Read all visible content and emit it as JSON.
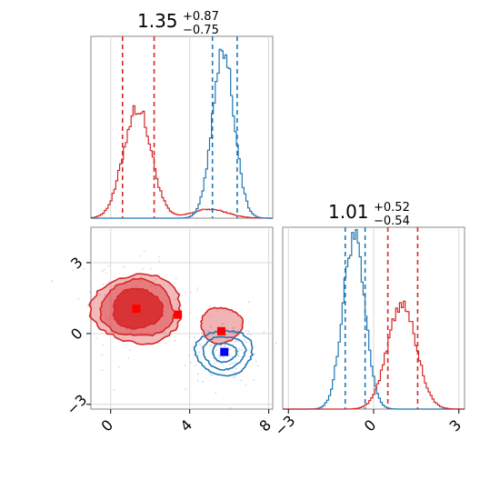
{
  "chart_data": [
    {
      "type": "histogram",
      "panel": "top-left marginal (param 1)",
      "title": {
        "value": "1.35",
        "plus": "+0.87",
        "minus": "−0.75"
      },
      "xlim": [
        -1,
        8.2
      ],
      "series": [
        {
          "color": "#d62728",
          "peak_x": 1.35,
          "sigma": 0.7,
          "peak_height": 0.62,
          "quantile_lines": [
            0.6,
            2.2
          ]
        },
        {
          "color": "#1f77b4",
          "peak_x": 5.7,
          "sigma": 0.55,
          "peak_height": 0.95,
          "quantile_lines": [
            5.15,
            6.4
          ]
        }
      ],
      "red_minor_bump": {
        "x": 5.0,
        "height": 0.05
      },
      "grid": true
    },
    {
      "type": "histogram",
      "panel": "bottom-right marginal (param 2)",
      "title": {
        "value": "1.01",
        "plus": "+0.52",
        "minus": "−0.54"
      },
      "xlim": [
        -3.2,
        3.2
      ],
      "xticks": [
        -3,
        0,
        3
      ],
      "xtick_labels": [
        "−3",
        "0",
        "3"
      ],
      "series": [
        {
          "color": "#1f77b4",
          "peak_x": -0.7,
          "sigma": 0.38,
          "peak_height": 0.97,
          "quantile_lines": [
            -1.0,
            -0.3
          ]
        },
        {
          "color": "#d62728",
          "peak_x": 1.0,
          "sigma": 0.5,
          "peak_height": 0.6,
          "quantile_lines": [
            0.5,
            1.55
          ]
        }
      ],
      "grid": true
    },
    {
      "type": "contour",
      "panel": "bottom-left joint (param 1 vs param 2)",
      "xlim": [
        -1,
        8.2
      ],
      "ylim": [
        -3.2,
        4.5
      ],
      "xticks": [
        0,
        4,
        8
      ],
      "yticks": [
        -3,
        0,
        3
      ],
      "xtick_labels": [
        "0",
        "4",
        "8"
      ],
      "ytick_labels": [
        "−3",
        "0",
        "3"
      ],
      "red_contours": [
        {
          "cx": 1.35,
          "cy": 1.05,
          "rx": 2.3,
          "ry": 1.45
        },
        {
          "cx": 1.35,
          "cy": 1.05,
          "rx": 1.85,
          "ry": 1.2
        },
        {
          "cx": 1.35,
          "cy": 1.05,
          "rx": 1.25,
          "ry": 0.85
        },
        {
          "cx": 5.6,
          "cy": 0.35,
          "rx": 1.05,
          "ry": 0.75
        }
      ],
      "blue_contours": [
        {
          "cx": 5.75,
          "cy": -0.8,
          "rx": 1.45,
          "ry": 0.95
        },
        {
          "cx": 5.75,
          "cy": -0.8,
          "rx": 1.05,
          "ry": 0.7
        },
        {
          "cx": 5.75,
          "cy": -0.8,
          "rx": 0.6,
          "ry": 0.4
        }
      ],
      "markers": [
        {
          "x": 1.3,
          "y": 1.05,
          "color": "#ff0000"
        },
        {
          "x": 3.4,
          "y": 0.8,
          "color": "#ff0000"
        },
        {
          "x": 5.6,
          "y": 0.1,
          "color": "#ff0000"
        },
        {
          "x": 5.75,
          "y": -0.78,
          "color": "#0000ff"
        }
      ],
      "grid": true
    }
  ]
}
